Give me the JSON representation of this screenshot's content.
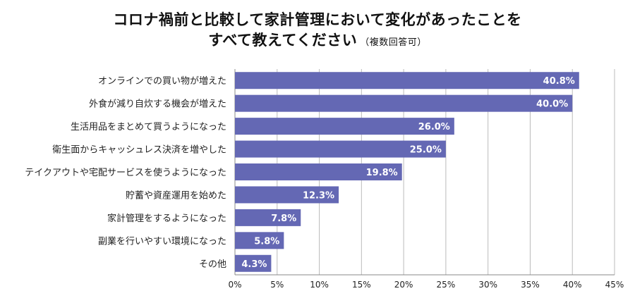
{
  "title": {
    "line1": "コロナ禍前と比較して家計管理において変化があったことを",
    "line2": "すべて教えてください",
    "note": "（複数回答可）"
  },
  "colors": {
    "bar": "#6468b4",
    "grid": "#bbbbbb",
    "axis": "#888888"
  },
  "chart_data": {
    "type": "bar",
    "orientation": "horizontal",
    "title": "コロナ禍前と比較して家計管理において変化があったことをすべて教えてください（複数回答可）",
    "categories": [
      "オンラインでの買い物が増えた",
      "外食が減り自炊する機会が増えた",
      "生活用品をまとめて買うようになった",
      "衛生面からキャッシュレス決済を増やした",
      "テイクアウトや宅配サービスを使うようになった",
      "貯蓄や資産運用を始めた",
      "家計管理をするようになった",
      "副業を行いやすい環境になった",
      "その他"
    ],
    "values": [
      40.8,
      40.0,
      26.0,
      25.0,
      19.8,
      12.3,
      7.8,
      5.8,
      4.3
    ],
    "value_labels": [
      "40.8%",
      "40.0%",
      "26.0%",
      "25.0%",
      "19.8%",
      "12.3%",
      "7.8%",
      "5.8%",
      "4.3%"
    ],
    "xlim": [
      0,
      45
    ],
    "xticks": [
      "0%",
      "5%",
      "10%",
      "15%",
      "20%",
      "25%",
      "30%",
      "35%",
      "40%",
      "45%"
    ],
    "grid": true,
    "xlabel": "",
    "ylabel": ""
  }
}
